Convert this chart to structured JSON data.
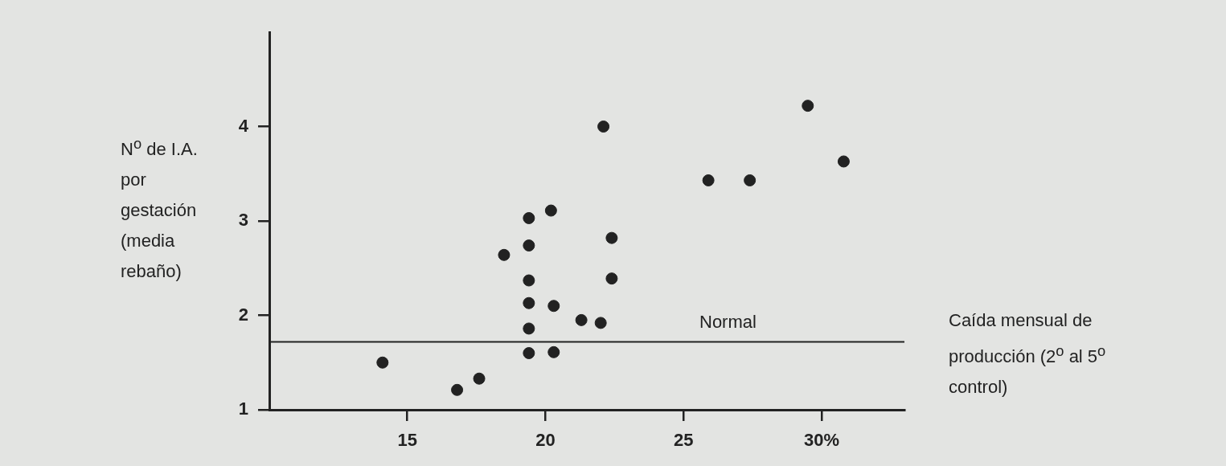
{
  "chart_data": {
    "type": "scatter",
    "xlabel": "Caída mensual de producción (2$^{o}$ al 5$^{o}$ control)",
    "ylabel": "N$^{o}$ de I.A. por gestación (media rebaño)",
    "x": [
      14.1,
      16.8,
      17.6,
      18.5,
      19.4,
      19.4,
      19.4,
      19.4,
      19.4,
      19.4,
      20.2,
      20.3,
      20.3,
      21.3,
      22.0,
      22.1,
      22.4,
      22.4,
      25.9,
      27.4,
      29.5,
      30.8
    ],
    "values": [
      1.5,
      1.21,
      1.33,
      2.64,
      3.03,
      2.74,
      2.37,
      2.13,
      1.86,
      1.6,
      3.11,
      2.1,
      1.61,
      1.95,
      1.92,
      4.0,
      2.82,
      2.39,
      3.43,
      3.43,
      4.22,
      3.63
    ],
    "color": "#222222",
    "marker": "circle",
    "xlim": [
      10,
      33
    ],
    "xticks": [
      15,
      20,
      25,
      {
        "value": 30,
        "label": "30%"
      }
    ],
    "ylim": [
      1,
      5
    ],
    "yticks": [
      1,
      2,
      3,
      4
    ],
    "ref_lines": [
      {
        "axis": "y",
        "value": 1.72,
        "label": "Normal",
        "color": "#222222"
      }
    ],
    "grid": false,
    "legend": false
  }
}
